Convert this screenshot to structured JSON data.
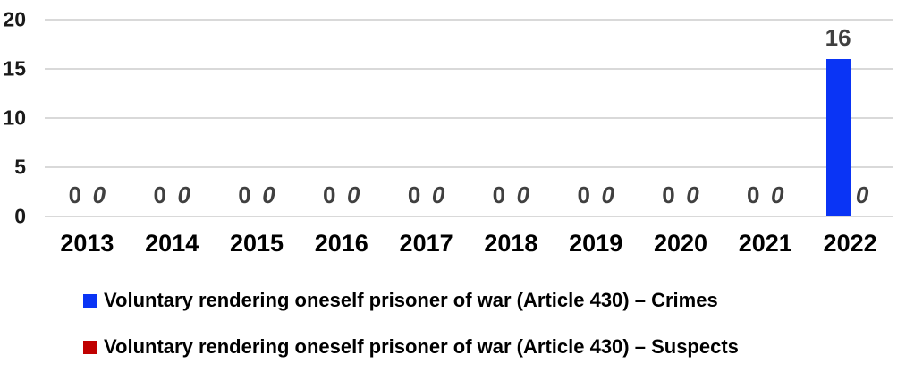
{
  "chart_data": {
    "type": "bar",
    "categories": [
      "2013",
      "2014",
      "2015",
      "2016",
      "2017",
      "2018",
      "2019",
      "2020",
      "2021",
      "2022"
    ],
    "series": [
      {
        "name": "Voluntary rendering oneself prisoner of war (Article 430) – Crimes",
        "color": "#0a34f5",
        "values": [
          0,
          0,
          0,
          0,
          0,
          0,
          0,
          0,
          0,
          16
        ]
      },
      {
        "name": "Voluntary rendering oneself prisoner of war (Article 430) – Suspects",
        "color": "#c00000",
        "values": [
          0,
          0,
          0,
          0,
          0,
          0,
          0,
          0,
          0,
          0
        ]
      }
    ],
    "title": "",
    "xlabel": "",
    "ylabel": "",
    "ylim": [
      0,
      20
    ],
    "yticks": [
      0,
      5,
      10,
      15,
      20
    ],
    "grid": true,
    "legend_position": "bottom-left",
    "gridline_color": "#d9d9d9",
    "value_label_color": "#404040",
    "axis_text_color": "#1a1a1a"
  }
}
